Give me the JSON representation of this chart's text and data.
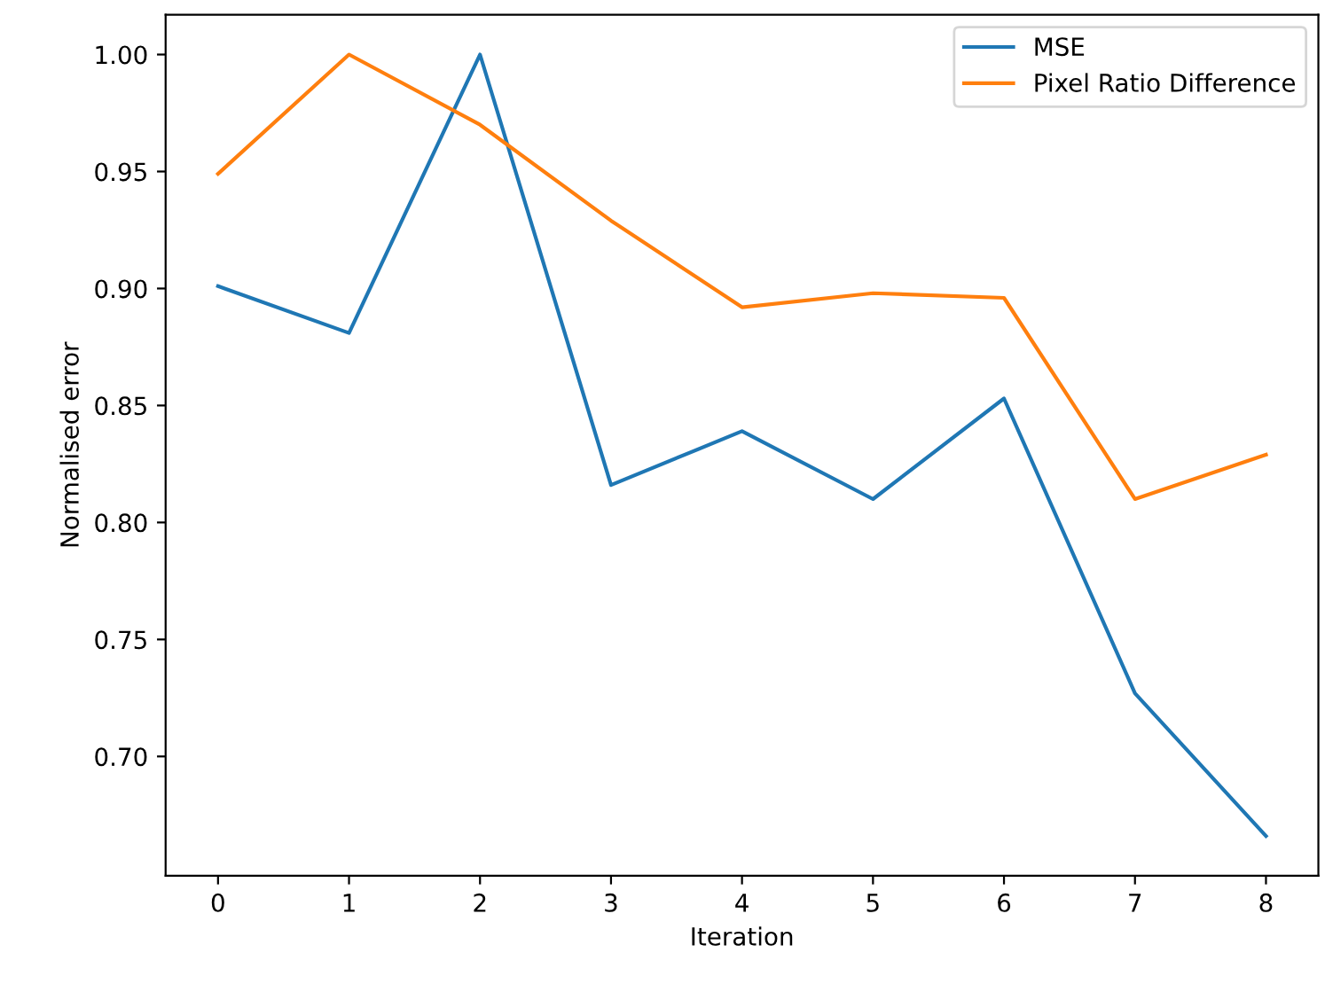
{
  "chart_data": {
    "type": "line",
    "xlabel": "Iteration",
    "ylabel": "Normalised error",
    "x": [
      0,
      1,
      2,
      3,
      4,
      5,
      6,
      7,
      8
    ],
    "series": [
      {
        "name": "MSE",
        "color": "#1f77b4",
        "values": [
          0.901,
          0.881,
          1.0,
          0.816,
          0.839,
          0.81,
          0.853,
          0.727,
          0.666
        ]
      },
      {
        "name": "Pixel Ratio Difference",
        "color": "#ff7f0e",
        "values": [
          0.949,
          1.0,
          0.97,
          0.929,
          0.892,
          0.898,
          0.896,
          0.81,
          0.829
        ]
      }
    ],
    "xlim": [
      -0.4,
      8.4
    ],
    "ylim": [
      0.649,
      1.017
    ],
    "xticks": [
      0,
      1,
      2,
      3,
      4,
      5,
      6,
      7,
      8
    ],
    "yticks": [
      {
        "value": 0.7,
        "label": "0.70"
      },
      {
        "value": 0.75,
        "label": "0.75"
      },
      {
        "value": 0.8,
        "label": "0.80"
      },
      {
        "value": 0.85,
        "label": "0.85"
      },
      {
        "value": 0.9,
        "label": "0.90"
      },
      {
        "value": 0.95,
        "label": "0.95"
      },
      {
        "value": 1.0,
        "label": "1.00"
      }
    ],
    "legend": "top right",
    "grid": false,
    "line_style": "solid"
  }
}
